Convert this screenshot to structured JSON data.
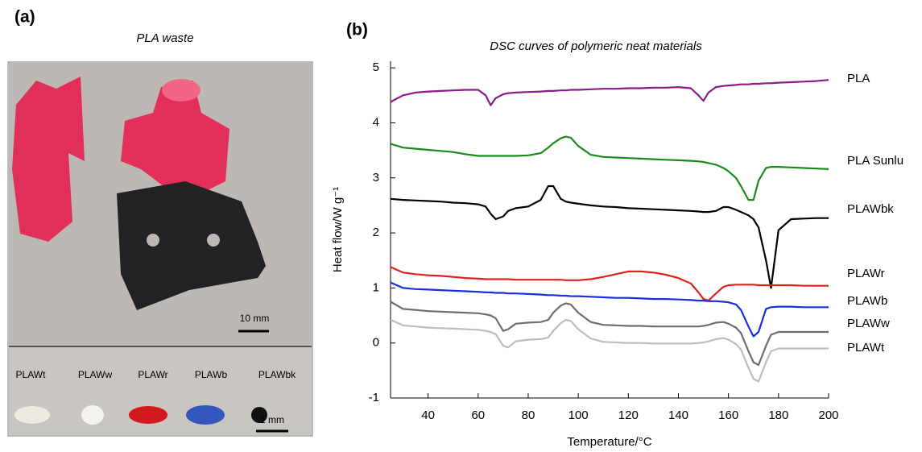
{
  "panel_a": {
    "label": "(a)",
    "title": "PLA waste",
    "scale_top": "10 mm",
    "samples": [
      "PLAWt",
      "PLAWw",
      "PLAWr",
      "PLAWb",
      "PLAWbk"
    ],
    "scale_bottom": "1 mm"
  },
  "chart_data": {
    "type": "line",
    "panel_label": "(b)",
    "title": "DSC curves of polymeric neat materials",
    "xlabel": "Temperature/°C",
    "ylabel": "Heat flow/W g⁻¹",
    "x": [
      25,
      30,
      35,
      40,
      45,
      50,
      55,
      60,
      63,
      65,
      67,
      70,
      72,
      75,
      80,
      85,
      88,
      90,
      93,
      95,
      97,
      100,
      105,
      110,
      115,
      120,
      125,
      130,
      135,
      140,
      145,
      148,
      150,
      152,
      155,
      158,
      160,
      163,
      165,
      168,
      170,
      172,
      175,
      177,
      180,
      185,
      190,
      195,
      200
    ],
    "xlim": [
      25,
      200
    ],
    "ylim": [
      -1,
      5.12
    ],
    "xticks": [
      40,
      60,
      80,
      100,
      120,
      140,
      160,
      180,
      200
    ],
    "yticks": [
      -1,
      0,
      1,
      2,
      3,
      4,
      5
    ],
    "series": [
      {
        "name": "PLA",
        "color": "#8b1a8b",
        "values": [
          4.38,
          4.5,
          4.55,
          4.57,
          4.58,
          4.59,
          4.6,
          4.6,
          4.5,
          4.32,
          4.45,
          4.52,
          4.54,
          4.55,
          4.56,
          4.57,
          4.58,
          4.58,
          4.59,
          4.59,
          4.6,
          4.6,
          4.61,
          4.62,
          4.62,
          4.63,
          4.63,
          4.64,
          4.64,
          4.65,
          4.63,
          4.5,
          4.4,
          4.55,
          4.65,
          4.67,
          4.68,
          4.69,
          4.7,
          4.7,
          4.71,
          4.71,
          4.72,
          4.72,
          4.73,
          4.74,
          4.75,
          4.76,
          4.78
        ]
      },
      {
        "name": "PLA Sunlu",
        "color": "#1a8a1a",
        "values": [
          3.62,
          3.55,
          3.53,
          3.51,
          3.49,
          3.47,
          3.43,
          3.4,
          3.4,
          3.4,
          3.4,
          3.4,
          3.4,
          3.4,
          3.41,
          3.45,
          3.55,
          3.63,
          3.72,
          3.75,
          3.73,
          3.58,
          3.42,
          3.38,
          3.37,
          3.36,
          3.35,
          3.34,
          3.33,
          3.32,
          3.31,
          3.3,
          3.29,
          3.27,
          3.24,
          3.18,
          3.12,
          3.0,
          2.85,
          2.6,
          2.6,
          2.95,
          3.18,
          3.2,
          3.2,
          3.19,
          3.18,
          3.17,
          3.16
        ]
      },
      {
        "name": "PLAWbk",
        "color": "#000000",
        "values": [
          2.62,
          2.6,
          2.59,
          2.58,
          2.57,
          2.55,
          2.54,
          2.52,
          2.48,
          2.35,
          2.25,
          2.3,
          2.4,
          2.45,
          2.48,
          2.6,
          2.85,
          2.85,
          2.62,
          2.57,
          2.55,
          2.53,
          2.5,
          2.48,
          2.47,
          2.45,
          2.44,
          2.43,
          2.42,
          2.41,
          2.4,
          2.39,
          2.38,
          2.38,
          2.4,
          2.47,
          2.47,
          2.42,
          2.38,
          2.32,
          2.25,
          2.1,
          1.5,
          1.0,
          2.05,
          2.25,
          2.26,
          2.27,
          2.27
        ]
      },
      {
        "name": "PLAWr",
        "color": "#e0201a",
        "values": [
          1.38,
          1.28,
          1.25,
          1.23,
          1.22,
          1.2,
          1.18,
          1.17,
          1.16,
          1.16,
          1.16,
          1.16,
          1.16,
          1.15,
          1.15,
          1.15,
          1.15,
          1.15,
          1.15,
          1.14,
          1.14,
          1.14,
          1.16,
          1.2,
          1.25,
          1.3,
          1.3,
          1.28,
          1.24,
          1.18,
          1.08,
          0.92,
          0.8,
          0.77,
          0.9,
          1.02,
          1.05,
          1.06,
          1.06,
          1.06,
          1.06,
          1.05,
          1.05,
          1.05,
          1.05,
          1.05,
          1.04,
          1.04,
          1.04
        ]
      },
      {
        "name": "PLAWb",
        "color": "#1a2ee0",
        "values": [
          1.1,
          1.0,
          0.98,
          0.97,
          0.96,
          0.95,
          0.94,
          0.93,
          0.92,
          0.92,
          0.91,
          0.91,
          0.9,
          0.9,
          0.89,
          0.88,
          0.87,
          0.87,
          0.86,
          0.86,
          0.85,
          0.85,
          0.84,
          0.83,
          0.82,
          0.82,
          0.81,
          0.8,
          0.8,
          0.79,
          0.78,
          0.77,
          0.77,
          0.76,
          0.76,
          0.75,
          0.74,
          0.7,
          0.6,
          0.3,
          0.12,
          0.2,
          0.62,
          0.65,
          0.66,
          0.66,
          0.65,
          0.65,
          0.65
        ]
      },
      {
        "name": "PLAWw",
        "color": "#6e6e6e",
        "values": [
          0.75,
          0.62,
          0.6,
          0.58,
          0.57,
          0.56,
          0.55,
          0.54,
          0.52,
          0.5,
          0.45,
          0.22,
          0.25,
          0.35,
          0.37,
          0.38,
          0.42,
          0.55,
          0.68,
          0.72,
          0.7,
          0.55,
          0.38,
          0.33,
          0.32,
          0.31,
          0.31,
          0.3,
          0.3,
          0.3,
          0.3,
          0.3,
          0.31,
          0.33,
          0.37,
          0.38,
          0.35,
          0.28,
          0.18,
          -0.15,
          -0.35,
          -0.4,
          -0.05,
          0.15,
          0.2,
          0.2,
          0.2,
          0.2,
          0.2
        ]
      },
      {
        "name": "PLAWt",
        "color": "#bdbdbd",
        "values": [
          0.42,
          0.32,
          0.3,
          0.28,
          0.27,
          0.26,
          0.25,
          0.24,
          0.22,
          0.2,
          0.16,
          -0.05,
          -0.08,
          0.03,
          0.06,
          0.07,
          0.1,
          0.22,
          0.36,
          0.42,
          0.4,
          0.25,
          0.08,
          0.02,
          0.01,
          0.0,
          0.0,
          -0.01,
          -0.01,
          -0.01,
          -0.01,
          0.0,
          0.01,
          0.03,
          0.07,
          0.09,
          0.06,
          -0.02,
          -0.12,
          -0.45,
          -0.65,
          -0.7,
          -0.35,
          -0.15,
          -0.1,
          -0.1,
          -0.1,
          -0.1,
          -0.1
        ]
      }
    ]
  }
}
